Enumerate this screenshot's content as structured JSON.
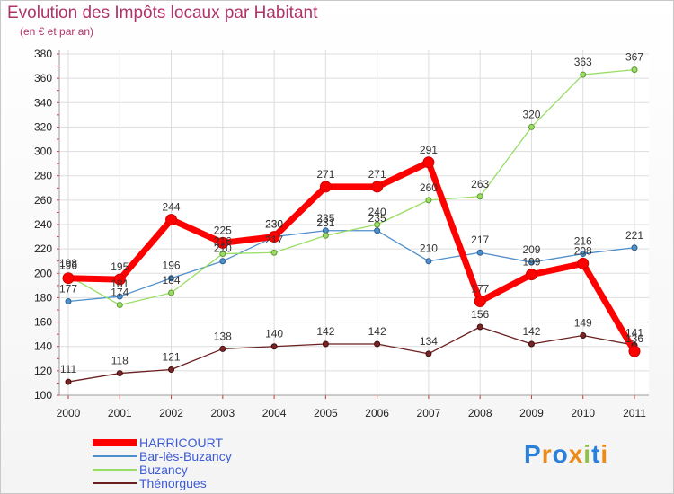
{
  "chart_data": {
    "type": "line",
    "title": "Evolution des Impôts locaux par Habitant",
    "subtitle": "(en € et par an)",
    "xlabel": "",
    "ylabel": "",
    "categories": [
      "2000",
      "2001",
      "2002",
      "2003",
      "2004",
      "2005",
      "2006",
      "2007",
      "2008",
      "2009",
      "2010",
      "2011"
    ],
    "ylim": [
      100,
      380
    ],
    "yticks": [
      100,
      120,
      140,
      160,
      180,
      200,
      220,
      240,
      260,
      280,
      300,
      320,
      340,
      360,
      380
    ],
    "grid": true,
    "legend_position": "bottom-left",
    "series": [
      {
        "name": "HARRICOURT",
        "color": "#ff0000",
        "values": [
          196,
          195,
          244,
          225,
          230,
          271,
          271,
          291,
          177,
          199,
          208,
          136
        ]
      },
      {
        "name": "Bar-lès-Buzancy",
        "color": "#4f8fcc",
        "values": [
          177,
          181,
          196,
          210,
          230,
          235,
          235,
          210,
          217,
          209,
          216,
          221
        ]
      },
      {
        "name": "Buzancy",
        "color": "#99dd66",
        "values": [
          198,
          174,
          184,
          216,
          217,
          231,
          240,
          260,
          263,
          320,
          363,
          367
        ]
      },
      {
        "name": "Thénorgues",
        "color": "#6b1f1f",
        "values": [
          111,
          118,
          121,
          138,
          140,
          142,
          142,
          134,
          156,
          142,
          149,
          141
        ]
      }
    ]
  },
  "brand": {
    "letters": [
      "P",
      "r",
      "o",
      "x",
      "i",
      "t",
      "i"
    ],
    "colors": [
      "#2a7fd8",
      "#ee8a1a",
      "#2a7fd8",
      "#ee8a1a",
      "#8fc04a",
      "#2a7fd8",
      "#ee8a1a"
    ]
  }
}
